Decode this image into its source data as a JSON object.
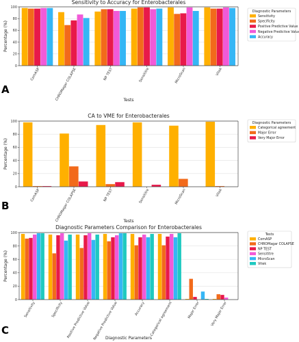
{
  "chart_data": [
    {
      "type": "bar",
      "panel": "A",
      "title": "Sensitivity to Accuracy for Enterobacterales",
      "xlabel": "Tests",
      "ylabel": "Percentage (%)",
      "ylim": [
        0,
        100
      ],
      "yticks": [
        0,
        20,
        40,
        60,
        80,
        100
      ],
      "grid": true,
      "legend_title": "Diagnostic Parameters",
      "legend_position": "right",
      "categories": [
        "ComASP",
        "CHROMagar COLAPSE",
        "NP TEST",
        "Sensititre",
        "MicroScan",
        "Vitek"
      ],
      "series": [
        {
          "name": "Sensitivity",
          "color": "#ffb000",
          "values": [
            98,
            91,
            92,
            97,
            99,
            99
          ]
        },
        {
          "name": "Specificity",
          "color": "#f26a1b",
          "values": [
            97,
            69,
            96,
            99,
            88,
            97
          ]
        },
        {
          "name": "Positive Predictive Value",
          "color": "#e8194a",
          "values": [
            97,
            77,
            96,
            99,
            89,
            97
          ]
        },
        {
          "name": "Negative Predictive Value",
          "color": "#f15ad8",
          "values": [
            98,
            87,
            93,
            96,
            99,
            99
          ]
        },
        {
          "name": "Accuracy",
          "color": "#35b6f5",
          "values": [
            98,
            81,
            93,
            97,
            93,
            98
          ]
        }
      ]
    },
    {
      "type": "bar",
      "panel": "B",
      "title": "CA to VME for Enterobacterales",
      "xlabel": "Tests",
      "ylabel": "Percentage (%)",
      "ylim": [
        0,
        100
      ],
      "yticks": [
        0,
        20,
        40,
        60,
        80,
        100
      ],
      "grid": true,
      "legend_title": "Diagnostic Parameters",
      "legend_position": "right",
      "categories": [
        "ComASP",
        "CHROMagar COLAPSE",
        "NP TEST",
        "Sensititre",
        "MicroScan",
        "Vitek"
      ],
      "series": [
        {
          "name": "Categorical agreement",
          "color": "#ffb000",
          "values": [
            98,
            81,
            94,
            98,
            93,
            99
          ]
        },
        {
          "name": "Major Error",
          "color": "#f26a1b",
          "values": [
            1,
            31,
            4,
            0,
            12,
            1
          ]
        },
        {
          "name": "Very Major Error",
          "color": "#e8194a",
          "values": [
            1,
            8,
            7,
            3,
            0,
            0
          ]
        }
      ]
    },
    {
      "type": "bar",
      "panel": "C",
      "title": "Diagnostic Parameters Comparison for Enterobacterales",
      "xlabel": "Diagnostic Parameters",
      "ylabel": "Percentage (%)",
      "ylim": [
        0,
        100
      ],
      "yticks": [
        0,
        20,
        40,
        60,
        80,
        100
      ],
      "grid": true,
      "legend_title": "Tests",
      "legend_position": "right",
      "categories": [
        "Sensitivity",
        "Specificity",
        "Positive Predictive Value",
        "Negative Predictive Value",
        "Accuracy",
        "Categorical agreement",
        "Major Error",
        "Very Major Error"
      ],
      "series": [
        {
          "name": "ComASP",
          "color": "#ffb000",
          "values": [
            98,
            97,
            97,
            98,
            98,
            98,
            1,
            1
          ]
        },
        {
          "name": "CHROMagar COLAPSE",
          "color": "#f26a1b",
          "values": [
            91,
            69,
            77,
            87,
            81,
            81,
            31,
            8
          ]
        },
        {
          "name": "NP TEST",
          "color": "#e8194a",
          "values": [
            92,
            96,
            96,
            93,
            93,
            94,
            4,
            7
          ]
        },
        {
          "name": "Sensititre",
          "color": "#f15ad8",
          "values": [
            97,
            99,
            99,
            96,
            97,
            98,
            0,
            3
          ]
        },
        {
          "name": "MicroScan",
          "color": "#35b6f5",
          "values": [
            99,
            88,
            89,
            99,
            93,
            93,
            12,
            0
          ]
        },
        {
          "name": "Vitek",
          "color": "#1fc9c0",
          "values": [
            99,
            97,
            97,
            99,
            98,
            99,
            1,
            0
          ]
        }
      ]
    }
  ]
}
